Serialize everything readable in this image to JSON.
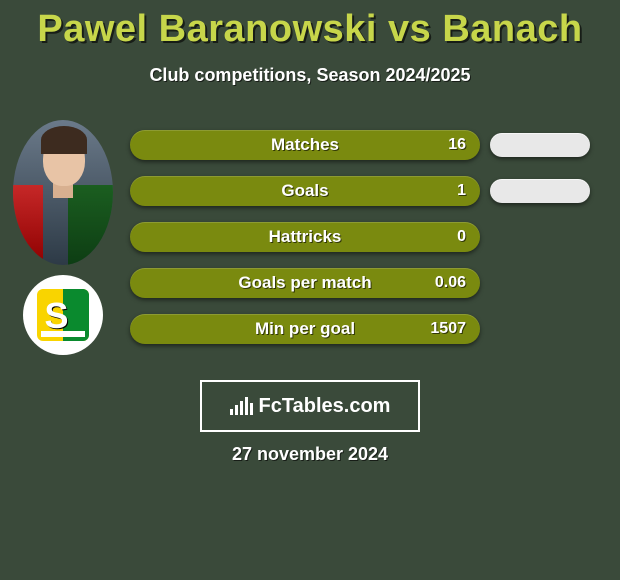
{
  "background_color": "#3a4a3a",
  "title": {
    "text": "Pawel Baranowski vs Banach",
    "color": "#c7d64a",
    "fontsize": 38
  },
  "subtitle": {
    "text": "Club competitions, Season 2024/2025",
    "color": "#ffffff",
    "fontsize": 18
  },
  "left_pill": {
    "bg_color": "#7a8a0f",
    "text_color": "#ffffff",
    "max_width": 350
  },
  "right_pill": {
    "bg_color": "#e8e8e8",
    "max_width": 110
  },
  "stats": [
    {
      "label": "Matches",
      "value": "16",
      "left_width": 350,
      "right_width": 100
    },
    {
      "label": "Goals",
      "value": "1",
      "left_width": 350,
      "right_width": 100
    },
    {
      "label": "Hattricks",
      "value": "0",
      "left_width": 350,
      "right_width": 0
    },
    {
      "label": "Goals per match",
      "value": "0.06",
      "left_width": 350,
      "right_width": 0
    },
    {
      "label": "Min per goal",
      "value": "1507",
      "left_width": 350,
      "right_width": 0
    }
  ],
  "brand": {
    "text": "FcTables.com",
    "border_color": "#ffffff",
    "text_color": "#ffffff"
  },
  "date": {
    "text": "27 november 2024",
    "color": "#ffffff",
    "fontsize": 18
  },
  "avatar2_logo": {
    "yellow": "#f9d400",
    "green": "#0a8a2e",
    "letter": "S"
  }
}
